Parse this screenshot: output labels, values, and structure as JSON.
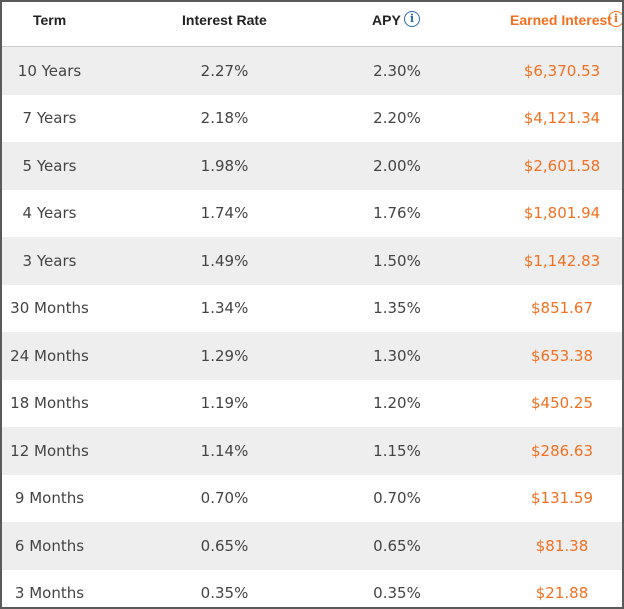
{
  "header": {
    "term": "Term",
    "interest_rate": "Interest Rate",
    "apy": "APY",
    "earned_interest": "Earned Interest",
    "info_glyph": "i"
  },
  "colors": {
    "accent_orange": "#f37021",
    "info_blue": "#2b6cb0",
    "stripe": "#eeeeee"
  },
  "rows": [
    {
      "term": "10 Years",
      "rate": "2.27%",
      "apy": "2.30%",
      "earned": "$6,370.53"
    },
    {
      "term": "7 Years",
      "rate": "2.18%",
      "apy": "2.20%",
      "earned": "$4,121.34"
    },
    {
      "term": "5 Years",
      "rate": "1.98%",
      "apy": "2.00%",
      "earned": "$2,601.58"
    },
    {
      "term": "4 Years",
      "rate": "1.74%",
      "apy": "1.76%",
      "earned": "$1,801.94"
    },
    {
      "term": "3 Years",
      "rate": "1.49%",
      "apy": "1.50%",
      "earned": "$1,142.83"
    },
    {
      "term": "30 Months",
      "rate": "1.34%",
      "apy": "1.35%",
      "earned": "$851.67"
    },
    {
      "term": "24 Months",
      "rate": "1.29%",
      "apy": "1.30%",
      "earned": "$653.38"
    },
    {
      "term": "18 Months",
      "rate": "1.19%",
      "apy": "1.20%",
      "earned": "$450.25"
    },
    {
      "term": "12 Months",
      "rate": "1.14%",
      "apy": "1.15%",
      "earned": "$286.63"
    },
    {
      "term": "9 Months",
      "rate": "0.70%",
      "apy": "0.70%",
      "earned": "$131.59"
    },
    {
      "term": "6 Months",
      "rate": "0.65%",
      "apy": "0.65%",
      "earned": "$81.38"
    },
    {
      "term": "3 Months",
      "rate": "0.35%",
      "apy": "0.35%",
      "earned": "$21.88"
    }
  ]
}
